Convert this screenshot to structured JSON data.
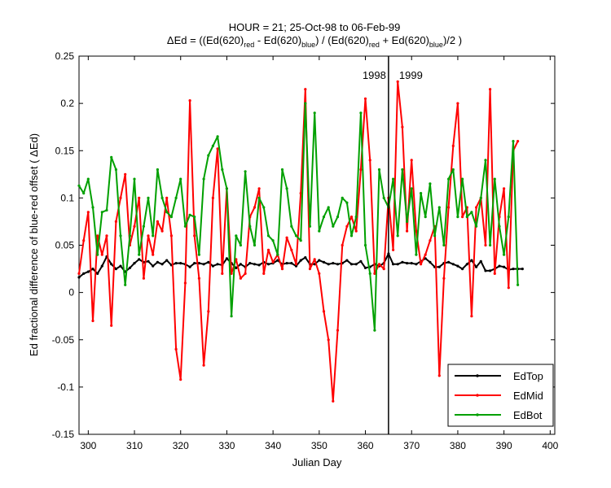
{
  "chart_data": {
    "type": "line",
    "title_line1": "HOUR = 21; 25-Oct-98 to 06-Feb-99",
    "title_line2": {
      "parts": [
        "ΔEd = ((Ed(620)",
        "red",
        " - Ed(620)",
        "blue",
        ") / (Ed(620)",
        "red",
        " + Ed(620)",
        "blue",
        ")/2  )"
      ]
    },
    "xlabel": "Julian Day",
    "ylabel": "Ed fractional difference of blue-red offset ( ΔEd)",
    "xlim": [
      298,
      401
    ],
    "ylim": [
      -0.15,
      0.25
    ],
    "xticks": [
      300,
      310,
      320,
      330,
      340,
      350,
      360,
      370,
      380,
      390,
      400
    ],
    "yticks": [
      -0.15,
      -0.1,
      -0.05,
      0,
      0.05,
      0.1,
      0.15,
      0.2,
      0.25
    ],
    "ytick_labels": [
      "-0.15",
      "-0.1",
      "-0.05",
      "0",
      "0.05",
      "0.1",
      "0.15",
      "0.2",
      "0.25"
    ],
    "grid": false,
    "legend_position": "bottom-right",
    "year_divider": {
      "x": 365,
      "left_label": "1998",
      "right_label": "1999"
    },
    "series": [
      {
        "name": "EdTop",
        "color": "#000000",
        "x": [
          298,
          299,
          300,
          301,
          302,
          303,
          304,
          305,
          306,
          307,
          308,
          309,
          310,
          311,
          312,
          313,
          314,
          315,
          316,
          317,
          318,
          319,
          320,
          321,
          322,
          323,
          324,
          325,
          326,
          327,
          328,
          329,
          330,
          331,
          332,
          333,
          334,
          335,
          336,
          337,
          338,
          339,
          340,
          341,
          342,
          343,
          344,
          345,
          346,
          347,
          348,
          349,
          350,
          351,
          352,
          353,
          354,
          355,
          356,
          357,
          358,
          359,
          360,
          361,
          362,
          363,
          364,
          365,
          366,
          367,
          368,
          369,
          370,
          371,
          372,
          373,
          374,
          375,
          376,
          377,
          378,
          379,
          380,
          381,
          382,
          383,
          384,
          385,
          386,
          387,
          388,
          389,
          390,
          391,
          392,
          393,
          394
        ],
        "y": [
          0.016,
          0.02,
          0.022,
          0.025,
          0.02,
          0.028,
          0.038,
          0.03,
          0.025,
          0.028,
          0.022,
          0.026,
          0.031,
          0.035,
          0.032,
          0.033,
          0.028,
          0.032,
          0.03,
          0.034,
          0.029,
          0.031,
          0.031,
          0.03,
          0.027,
          0.031,
          0.031,
          0.03,
          0.032,
          0.028,
          0.03,
          0.029,
          0.036,
          0.031,
          0.026,
          0.03,
          0.027,
          0.031,
          0.03,
          0.029,
          0.032,
          0.03,
          0.031,
          0.034,
          0.03,
          0.031,
          0.031,
          0.028,
          0.034,
          0.037,
          0.03,
          0.03,
          0.034,
          0.032,
          0.03,
          0.031,
          0.03,
          0.031,
          0.034,
          0.03,
          0.03,
          0.033,
          0.026,
          0.027,
          0.03,
          0.028,
          0.031,
          0.041,
          0.03,
          0.03,
          0.032,
          0.031,
          0.031,
          0.03,
          0.033,
          0.036,
          0.032,
          0.027,
          0.027,
          0.031,
          0.032,
          0.03,
          0.028,
          0.025,
          0.03,
          0.034,
          0.027,
          0.033,
          0.023,
          0.023,
          0.025,
          0.028,
          0.027,
          0.024,
          0.025,
          0.025,
          0.025
        ]
      },
      {
        "name": "EdMid",
        "color": "#ff0000",
        "x": [
          298,
          299,
          300,
          301,
          302,
          303,
          304,
          305,
          306,
          307,
          308,
          309,
          310,
          311,
          312,
          313,
          314,
          315,
          316,
          317,
          318,
          319,
          320,
          321,
          322,
          323,
          324,
          325,
          326,
          327,
          328,
          329,
          330,
          331,
          332,
          333,
          334,
          335,
          336,
          337,
          338,
          339,
          340,
          341,
          342,
          343,
          344,
          345,
          346,
          347,
          348,
          349,
          350,
          351,
          352,
          353,
          354,
          355,
          356,
          357,
          358,
          359,
          360,
          361,
          362,
          363,
          364,
          365,
          366,
          367,
          368,
          369,
          370,
          371,
          372,
          373,
          374,
          375,
          376,
          377,
          378,
          379,
          380,
          381,
          382,
          383,
          384,
          385,
          386,
          387,
          388,
          389,
          390,
          391,
          392,
          393
        ],
        "y": [
          0.02,
          0.055,
          0.085,
          -0.03,
          0.06,
          0.04,
          0.06,
          -0.035,
          0.075,
          0.1,
          0.125,
          0.05,
          0.07,
          0.1,
          0.015,
          0.06,
          0.04,
          0.075,
          0.065,
          0.1,
          0.06,
          -0.06,
          -0.092,
          0.01,
          0.203,
          0.06,
          0.015,
          -0.077,
          -0.02,
          0.1,
          0.152,
          0.02,
          0.11,
          0.02,
          0.035,
          0.015,
          0.02,
          0.08,
          0.09,
          0.11,
          0.02,
          0.045,
          0.032,
          0.04,
          0.025,
          0.058,
          0.045,
          0.03,
          0.105,
          0.215,
          0.025,
          0.035,
          0.02,
          -0.02,
          -0.05,
          -0.115,
          -0.04,
          0.05,
          0.07,
          0.08,
          0.065,
          0.13,
          0.205,
          0.14,
          0.02,
          0.03,
          0.025,
          0.1,
          0.045,
          0.223,
          0.175,
          0.065,
          0.14,
          0.065,
          0.03,
          0.04,
          0.055,
          0.07,
          -0.088,
          0.015,
          0.09,
          0.155,
          0.2,
          0.08,
          0.09,
          -0.025,
          0.09,
          0.1,
          0.05,
          0.215,
          0.02,
          0.08,
          0.11,
          0.005,
          0.15,
          0.16
        ]
      },
      {
        "name": "EdBot",
        "color": "#00a000",
        "x": [
          298,
          299,
          300,
          301,
          302,
          303,
          304,
          305,
          306,
          307,
          308,
          309,
          310,
          311,
          312,
          313,
          314,
          315,
          316,
          317,
          318,
          319,
          320,
          321,
          322,
          323,
          324,
          325,
          326,
          327,
          328,
          329,
          330,
          331,
          332,
          333,
          334,
          335,
          336,
          337,
          338,
          339,
          340,
          341,
          342,
          343,
          344,
          345,
          346,
          347,
          348,
          349,
          350,
          351,
          352,
          353,
          354,
          355,
          356,
          357,
          358,
          359,
          360,
          361,
          362,
          363,
          364,
          365,
          366,
          367,
          368,
          369,
          370,
          371,
          372,
          373,
          374,
          375,
          376,
          377,
          378,
          379,
          380,
          381,
          382,
          383,
          384,
          385,
          386,
          387,
          388,
          389,
          390,
          391,
          392,
          393
        ],
        "y": [
          0.113,
          0.105,
          0.12,
          0.09,
          0.04,
          0.085,
          0.087,
          0.143,
          0.13,
          0.06,
          0.008,
          0.06,
          0.12,
          0.04,
          0.07,
          0.1,
          0.06,
          0.13,
          0.1,
          0.085,
          0.08,
          0.1,
          0.12,
          0.07,
          0.082,
          0.08,
          0.04,
          0.12,
          0.145,
          0.155,
          0.165,
          0.13,
          0.11,
          -0.025,
          0.06,
          0.05,
          0.128,
          0.07,
          0.05,
          0.1,
          0.09,
          0.06,
          0.055,
          0.04,
          0.13,
          0.11,
          0.07,
          0.06,
          0.055,
          0.2,
          0.07,
          0.19,
          0.065,
          0.08,
          0.09,
          0.07,
          0.08,
          0.1,
          0.095,
          0.06,
          0.08,
          0.19,
          0.05,
          0.02,
          -0.04,
          0.13,
          0.1,
          0.09,
          0.12,
          0.06,
          0.13,
          0.075,
          0.11,
          0.04,
          0.105,
          0.08,
          0.115,
          0.06,
          0.09,
          0.05,
          0.12,
          0.13,
          0.08,
          0.12,
          0.08,
          0.085,
          0.07,
          0.1,
          0.14,
          0.05,
          0.12,
          0.07,
          0.04,
          0.08,
          0.16,
          0.008
        ]
      }
    ]
  }
}
